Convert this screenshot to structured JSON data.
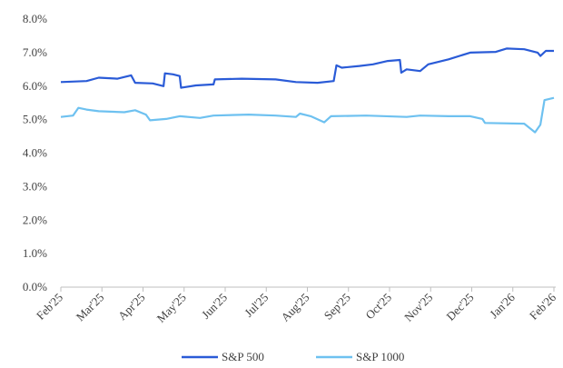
{
  "chart_data": {
    "type": "line",
    "title": "",
    "xlabel": "",
    "ylabel": "",
    "ylim": [
      0,
      8
    ],
    "y_ticks": [
      "0.0%",
      "1.0%",
      "2.0%",
      "3.0%",
      "4.0%",
      "5.0%",
      "6.0%",
      "7.0%",
      "8.0%"
    ],
    "x_ticks": [
      "Feb'25",
      "Mar'25",
      "Apr'25",
      "May'25",
      "Jun'25",
      "Jul'25",
      "Aug'25",
      "Sep'25",
      "Oct'25",
      "Nov'25",
      "Dec'25",
      "Jan'26",
      "Feb'26"
    ],
    "grid": false,
    "legend_position": "bottom-center",
    "series": [
      {
        "name": "S&P 500",
        "color": "#2a5bd7",
        "points": [
          [
            "2025-02-01",
            6.12
          ],
          [
            "2025-02-20",
            6.15
          ],
          [
            "2025-03-01",
            6.25
          ],
          [
            "2025-03-15",
            6.22
          ],
          [
            "2025-03-25",
            6.32
          ],
          [
            "2025-03-28",
            6.1
          ],
          [
            "2025-04-10",
            6.08
          ],
          [
            "2025-04-18",
            6.0
          ],
          [
            "2025-04-19",
            6.38
          ],
          [
            "2025-04-25",
            6.35
          ],
          [
            "2025-04-30",
            6.3
          ],
          [
            "2025-05-01",
            5.95
          ],
          [
            "2025-05-12",
            6.02
          ],
          [
            "2025-05-25",
            6.05
          ],
          [
            "2025-05-26",
            6.2
          ],
          [
            "2025-06-15",
            6.22
          ],
          [
            "2025-07-10",
            6.2
          ],
          [
            "2025-07-25",
            6.12
          ],
          [
            "2025-08-10",
            6.1
          ],
          [
            "2025-08-22",
            6.15
          ],
          [
            "2025-08-24",
            6.62
          ],
          [
            "2025-08-28",
            6.55
          ],
          [
            "2025-09-10",
            6.6
          ],
          [
            "2025-09-20",
            6.65
          ],
          [
            "2025-10-01",
            6.75
          ],
          [
            "2025-10-10",
            6.78
          ],
          [
            "2025-10-11",
            6.4
          ],
          [
            "2025-10-15",
            6.5
          ],
          [
            "2025-10-25",
            6.45
          ],
          [
            "2025-10-31",
            6.65
          ],
          [
            "2025-11-15",
            6.8
          ],
          [
            "2025-12-01",
            7.0
          ],
          [
            "2025-12-20",
            7.02
          ],
          [
            "2025-12-28",
            7.12
          ],
          [
            "2026-01-10",
            7.1
          ],
          [
            "2026-01-20",
            7.0
          ],
          [
            "2026-01-22",
            6.9
          ],
          [
            "2026-01-26",
            7.05
          ],
          [
            "2026-02-01",
            7.05
          ]
        ]
      },
      {
        "name": "S&P 1000",
        "color": "#6ec1f0",
        "points": [
          [
            "2025-02-01",
            5.08
          ],
          [
            "2025-02-10",
            5.12
          ],
          [
            "2025-02-14",
            5.35
          ],
          [
            "2025-02-20",
            5.3
          ],
          [
            "2025-03-01",
            5.25
          ],
          [
            "2025-03-20",
            5.22
          ],
          [
            "2025-03-28",
            5.28
          ],
          [
            "2025-04-05",
            5.15
          ],
          [
            "2025-04-08",
            4.98
          ],
          [
            "2025-04-20",
            5.02
          ],
          [
            "2025-04-30",
            5.1
          ],
          [
            "2025-05-15",
            5.05
          ],
          [
            "2025-05-25",
            5.12
          ],
          [
            "2025-06-20",
            5.15
          ],
          [
            "2025-07-10",
            5.12
          ],
          [
            "2025-07-25",
            5.08
          ],
          [
            "2025-07-28",
            5.18
          ],
          [
            "2025-08-05",
            5.1
          ],
          [
            "2025-08-15",
            4.92
          ],
          [
            "2025-08-20",
            5.1
          ],
          [
            "2025-09-15",
            5.12
          ],
          [
            "2025-10-15",
            5.08
          ],
          [
            "2025-10-25",
            5.12
          ],
          [
            "2025-11-15",
            5.1
          ],
          [
            "2025-12-01",
            5.1
          ],
          [
            "2025-12-10",
            5.02
          ],
          [
            "2025-12-12",
            4.9
          ],
          [
            "2026-01-10",
            4.88
          ],
          [
            "2026-01-18",
            4.62
          ],
          [
            "2026-01-22",
            4.85
          ],
          [
            "2026-01-25",
            5.58
          ],
          [
            "2026-02-01",
            5.65
          ]
        ]
      }
    ]
  }
}
